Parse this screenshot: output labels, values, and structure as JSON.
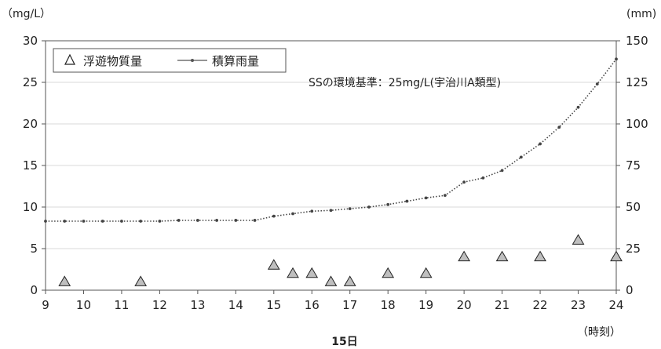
{
  "chart_data": {
    "type": "scatter+line",
    "left_unit": "（mg/L）",
    "right_unit": "(mm)",
    "x_unit": "（時刻）",
    "xlabel": "15日",
    "x_ticks": [
      9,
      10,
      11,
      12,
      13,
      14,
      15,
      16,
      17,
      18,
      19,
      20,
      21,
      22,
      23,
      24
    ],
    "left_axis": {
      "min": 0,
      "max": 30,
      "step": 5,
      "ticks": [
        0,
        5,
        10,
        15,
        20,
        25,
        30
      ]
    },
    "right_axis": {
      "min": 0,
      "max": 150,
      "step": 25,
      "ticks": [
        0,
        25,
        50,
        75,
        100,
        125,
        150
      ]
    },
    "xlim": [
      9,
      24
    ],
    "grid": "horizontal",
    "legend_position": "top-left",
    "annotation": "SSの環境基準：25mg/L(宇治川A類型)",
    "series": [
      {
        "name": "浮遊物質量",
        "axis": "left",
        "marker": "triangle",
        "color": "#bfbfbf",
        "x": [
          9.5,
          11.5,
          15.0,
          15.5,
          16.0,
          16.5,
          17.0,
          18.0,
          19.0,
          20.0,
          21.0,
          22.0,
          23.0,
          24.0
        ],
        "y": [
          1,
          1,
          3,
          2,
          2,
          1,
          1,
          2,
          2,
          4,
          4,
          4,
          6,
          4
        ]
      },
      {
        "name": "積算雨量",
        "axis": "right",
        "marker": "dot-line",
        "color": "#555555",
        "x": [
          9,
          9.5,
          10,
          10.5,
          11,
          11.5,
          12,
          12.5,
          13,
          13.5,
          14,
          14.5,
          15,
          15.5,
          16,
          16.5,
          17,
          17.5,
          18,
          18.5,
          19,
          19.5,
          20,
          20.5,
          21,
          21.5,
          22,
          22.5,
          23,
          23.5,
          24
        ],
        "y": [
          41.5,
          41.5,
          41.5,
          41.5,
          41.5,
          41.5,
          41.5,
          42,
          42,
          42,
          42,
          42,
          44.5,
          46,
          47.5,
          48,
          49,
          50,
          51.5,
          53.5,
          55.5,
          57,
          65,
          67.5,
          72,
          80,
          88,
          98,
          110,
          124,
          139
        ]
      }
    ]
  }
}
